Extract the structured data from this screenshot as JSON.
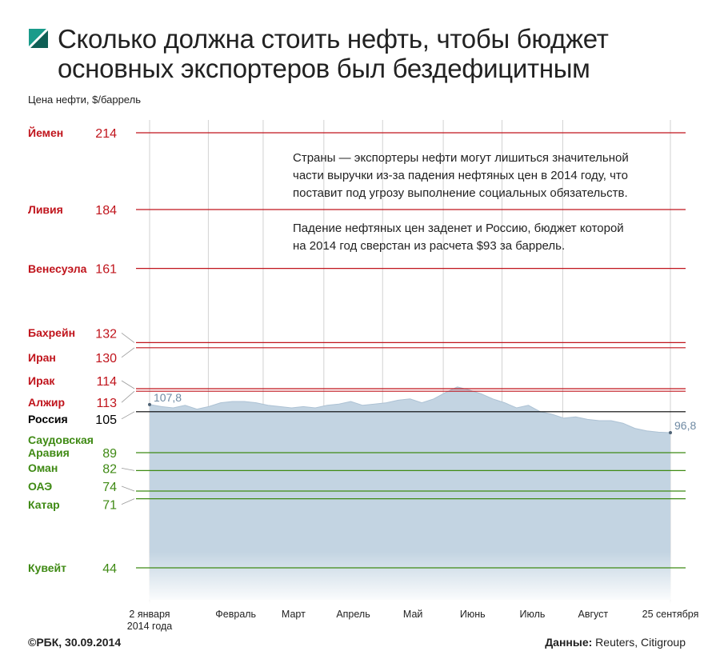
{
  "chart_data": {
    "type": "area",
    "title": "Сколько должна стоить нефть, чтобы бюджет\nосновных экспортеров был бездефицитным",
    "ylabel": "Цена нефти, $/баррель",
    "annotations": [
      "Страны — экспортеры нефти могут лишиться значительной\nчасти выручки из-за падения нефтяных цен в 2014 году, что\nпоставит под угрозу выполнение социальных обязательств.",
      "Падение нефтяных цен заденет и Россию, бюджет которой\nна 2014 год сверстан из расчета $93 за баррель."
    ],
    "source": "©РБК, 30.09.2014",
    "data_source_label": "Данные:",
    "data_source": "Reuters, Citigroup",
    "ylim": [
      31.5,
      219
    ],
    "xticks": [
      {
        "value": "2014-01-02",
        "label": "2 января\n2014 года"
      },
      {
        "value": "2014-02",
        "label": "Февраль"
      },
      {
        "value": "2014-03",
        "label": "Март"
      },
      {
        "value": "2014-04",
        "label": "Апрель"
      },
      {
        "value": "2014-05",
        "label": "Май"
      },
      {
        "value": "2014-06",
        "label": "Июнь"
      },
      {
        "value": "2014-07",
        "label": "Июль"
      },
      {
        "value": "2014-08",
        "label": "Август"
      },
      {
        "value": "2014-09-25",
        "label": "25 сентября"
      }
    ],
    "color": "#c3d4e2",
    "label_color": "#6f8aa3",
    "values": [
      107.8,
      107,
      106.5,
      107.5,
      106,
      107,
      108.5,
      109,
      109,
      108.5,
      107.5,
      107,
      106.5,
      107,
      106.5,
      107.5,
      108,
      109,
      107.5,
      108,
      108.5,
      109.5,
      110,
      108.5,
      110,
      112.5,
      114.7,
      113.5,
      112,
      110,
      108.5,
      106.5,
      107.5,
      105,
      104,
      102.5,
      103,
      102,
      101.5,
      101.5,
      100.5,
      98.5,
      97.5,
      97,
      96.8
    ],
    "value_labels": [
      "107,8",
      null,
      null,
      null,
      null,
      null,
      null,
      null,
      null,
      null,
      null,
      null,
      null,
      null,
      null,
      null,
      null,
      null,
      null,
      null,
      null,
      null,
      null,
      null,
      null,
      null,
      null,
      null,
      null,
      null,
      null,
      null,
      null,
      null,
      null,
      null,
      null,
      null,
      null,
      null,
      null,
      null,
      null,
      null,
      "96,8"
    ],
    "reference_lines": [
      {
        "name": "Йемен",
        "value": 214,
        "color": "#c0141c"
      },
      {
        "name": "Ливия",
        "value": 184,
        "color": "#c0141c"
      },
      {
        "name": "Венесуэла",
        "value": 161,
        "color": "#c0141c"
      },
      {
        "name": "Бахрейн",
        "value": 132,
        "color": "#c0141c"
      },
      {
        "name": "Иран",
        "value": 130,
        "color": "#c0141c"
      },
      {
        "name": "Ирак",
        "value": 114,
        "color": "#c0141c"
      },
      {
        "name": "Алжир",
        "value": 113,
        "color": "#c0141c"
      },
      {
        "name": "Россия",
        "value": 105,
        "color": "#000000"
      },
      {
        "name": "Саудовская\nАравия",
        "value": 89,
        "color": "#3f8a14"
      },
      {
        "name": "Оман",
        "value": 82,
        "color": "#3f8a14"
      },
      {
        "name": "ОАЭ",
        "value": 74,
        "color": "#3f8a14"
      },
      {
        "name": "Катар",
        "value": 71,
        "color": "#3f8a14"
      },
      {
        "name": "Кувейт",
        "value": 44,
        "color": "#3f8a14"
      }
    ]
  }
}
